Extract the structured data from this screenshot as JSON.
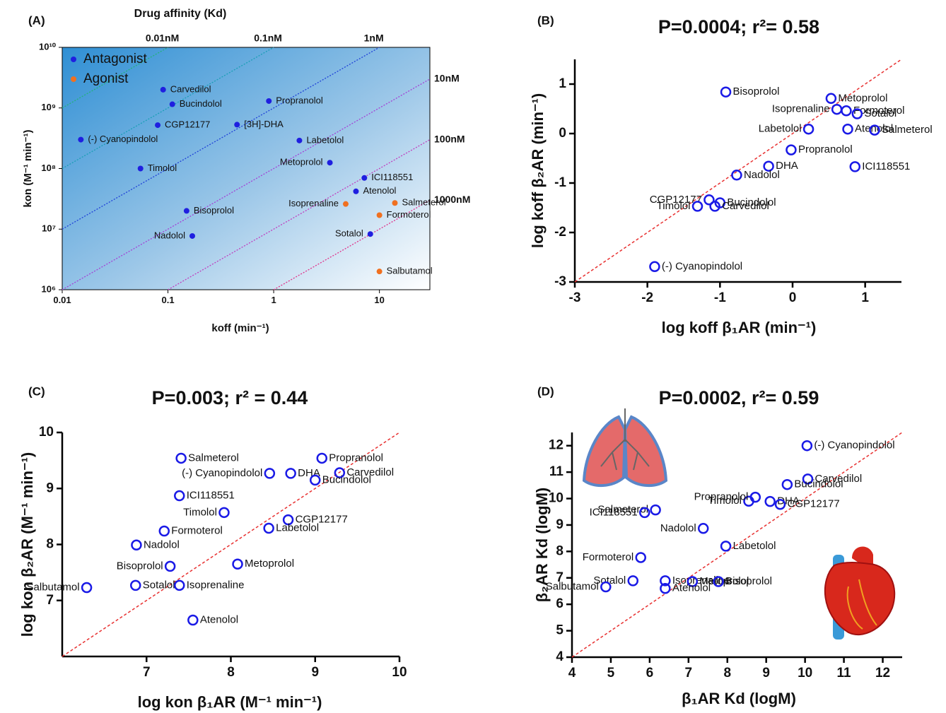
{
  "chart_data": [
    {
      "type": "scatter",
      "panel": "(A)",
      "title": "Drug affinity (Kd)",
      "xlabel": "koff (min⁻¹)",
      "ylabel": "kon (M⁻¹ min⁻¹)",
      "xscale": "log",
      "yscale": "log",
      "xlim": [
        0.01,
        30
      ],
      "ylim": [
        1000000,
        10000000000
      ],
      "xticks": [
        0.01,
        0.1,
        1,
        10
      ],
      "yticks": [
        {
          "value": 1000000,
          "label": "10⁶"
        },
        {
          "value": 10000000,
          "label": "10⁷"
        },
        {
          "value": 100000000,
          "label": "10⁸"
        },
        {
          "value": 1000000000,
          "label": "10⁹"
        },
        {
          "value": 10000000000,
          "label": "10¹⁰"
        }
      ],
      "marker": "filled",
      "legend": "top-left",
      "kd_lines": [
        {
          "label": "0.01nM",
          "value": 1e-11,
          "color": "#22b27a"
        },
        {
          "label": "0.1nM",
          "value": 1e-10,
          "color": "#1a9fb5"
        },
        {
          "label": "1nM",
          "value": 1e-09,
          "color": "#1f3fd8"
        },
        {
          "label": "10nM",
          "value": 1e-08,
          "color": "#a43fd6"
        },
        {
          "label": "100nM",
          "value": 1e-07,
          "color": "#c03cbf"
        },
        {
          "label": "1000nM",
          "value": 1e-06,
          "color": "#e0308a"
        }
      ],
      "series": [
        {
          "name": "Antagonist",
          "color": "#1f1fe0",
          "labels": [
            "Carvedilol",
            "Bucindolol",
            "Propranolol",
            "CGP12177",
            "[3H]-DHA",
            "(-) Cyanopindolol",
            "Labetolol",
            "Timolol",
            "Metoprolol",
            "ICI118551",
            "Atenolol",
            "Bisoprolol",
            "Nadolol",
            "Sotalol"
          ],
          "x": [
            0.09,
            0.11,
            0.9,
            0.08,
            0.45,
            0.015,
            1.75,
            0.055,
            3.4,
            7.2,
            6,
            0.15,
            0.17,
            8.2
          ],
          "y": [
            2000000000,
            1150000000,
            1300000000,
            520000000,
            530000000,
            300000000,
            290000000,
            100000000,
            125000000,
            70000000,
            42000000,
            20000000,
            7700000,
            8300000
          ]
        },
        {
          "name": "Agonist",
          "color": "#f07020",
          "labels": [
            "Salmeterol",
            "Isoprenaline",
            "Formoterol",
            "Salbutamol"
          ],
          "x": [
            14,
            4.8,
            10,
            10
          ],
          "y": [
            27000000,
            26000000,
            17000000,
            2000000
          ]
        }
      ]
    },
    {
      "type": "scatter",
      "panel": "(B)",
      "title": "P=0.0004; r²= 0.58",
      "xlabel": "log koff β₁AR (min⁻¹)",
      "ylabel": "log koff β₂AR (min⁻¹)",
      "xlim": [
        -3,
        1.5
      ],
      "ylim": [
        -3,
        1.5
      ],
      "xticks": [
        -3,
        -2,
        -1,
        0,
        1
      ],
      "yticks": [
        -3,
        -2,
        -1,
        0,
        1
      ],
      "marker": "open",
      "identity_line": true,
      "identity_color": "#e83030",
      "series": [
        {
          "color": "#1a1ae6",
          "labels": [
            "Bisoprolol",
            "Metoprolol",
            "Isoprenaline",
            "Formoterol",
            "Sotalol",
            "Labetolol",
            "Atenolol",
            "Salmeterol",
            "Propranolol",
            "ICI118551",
            "DHA",
            "Nadolol",
            "CGP12177",
            "Bucindolol",
            "Timolol",
            "Carvedilol",
            "(-) Cyanopindolol"
          ],
          "x": [
            -0.92,
            0.53,
            0.61,
            0.74,
            0.89,
            0.22,
            0.76,
            1.13,
            -0.02,
            0.86,
            -0.33,
            -0.77,
            -1.15,
            -1.0,
            -1.31,
            -1.07,
            -1.9
          ],
          "y": [
            0.84,
            0.71,
            0.49,
            0.46,
            0.4,
            0.09,
            0.09,
            0.07,
            -0.33,
            -0.67,
            -0.66,
            -0.84,
            -1.34,
            -1.4,
            -1.47,
            -1.47,
            -2.69
          ]
        }
      ]
    },
    {
      "type": "scatter",
      "panel": "(C)",
      "title": "P=0.003; r² = 0.44",
      "xlabel": "log kon β₁AR (M⁻¹ min⁻¹)",
      "ylabel": "log kon β₂AR (M⁻¹ min⁻¹)",
      "xlim": [
        6,
        10
      ],
      "ylim": [
        6,
        10
      ],
      "xticks": [
        7,
        8,
        9,
        10
      ],
      "yticks": [
        7,
        8,
        9,
        10
      ],
      "marker": "open",
      "identity_line": true,
      "identity_color": "#e83030",
      "series": [
        {
          "color": "#1a1ae6",
          "labels": [
            "Salmeterol",
            "Propranolol",
            "(-) Cyanopindolol",
            "DHA",
            "Carvedilol",
            "Bucindolol",
            "ICI118551",
            "Timolol",
            "CGP12177",
            "Formoterol",
            "Labetolol",
            "Nadolol",
            "Bisoprolol",
            "Metoprolol",
            "Salbutamol",
            "Sotalol",
            "Isoprenaline",
            "Atenolol"
          ],
          "x": [
            7.41,
            9.08,
            8.46,
            8.71,
            9.29,
            9.0,
            7.39,
            7.92,
            8.68,
            7.21,
            8.45,
            6.88,
            7.28,
            8.08,
            6.29,
            6.87,
            7.39,
            7.55
          ],
          "y": [
            9.54,
            9.54,
            9.27,
            9.27,
            9.28,
            9.15,
            8.87,
            8.57,
            8.44,
            8.24,
            8.29,
            7.99,
            7.61,
            7.65,
            7.23,
            7.27,
            7.27,
            6.65
          ]
        }
      ]
    },
    {
      "type": "scatter",
      "panel": "(D)",
      "title": "P=0.0002, r²= 0.59",
      "xlabel": "β₁AR Kd (logM)",
      "ylabel": "β₂AR Kd (logM)",
      "xlim": [
        4,
        12.5
      ],
      "ylim": [
        4,
        12.5
      ],
      "xticks": [
        4,
        5,
        6,
        7,
        8,
        9,
        10,
        11,
        12
      ],
      "yticks": [
        4,
        5,
        6,
        7,
        8,
        9,
        10,
        11,
        12
      ],
      "marker": "open",
      "identity_line": true,
      "identity_color": "#e83030",
      "series": [
        {
          "color": "#1a1ae6",
          "labels": [
            "(-) Cyanopindolol",
            "Carvedilol",
            "Bucindolol",
            "Timolol",
            "DHA",
            "CGP12177",
            "Salmeterol",
            "ICI118551",
            "Propranolol",
            "Nadolol",
            "Labetolol",
            "Formoterol",
            "Isoprenaline",
            "Metoprolol",
            "Bisoprolol",
            "Sotalol",
            "Atenolol",
            "Salbutamol"
          ],
          "x": [
            10.05,
            10.07,
            9.54,
            8.55,
            9.1,
            9.36,
            6.15,
            5.87,
            8.72,
            7.38,
            7.96,
            5.77,
            6.4,
            7.1,
            7.77,
            5.57,
            6.4,
            4.87
          ],
          "y": [
            12.0,
            10.74,
            10.53,
            9.9,
            9.89,
            9.78,
            9.57,
            9.47,
            10.05,
            8.87,
            8.2,
            7.77,
            6.89,
            6.86,
            6.86,
            6.89,
            6.6,
            6.66
          ]
        }
      ]
    }
  ]
}
